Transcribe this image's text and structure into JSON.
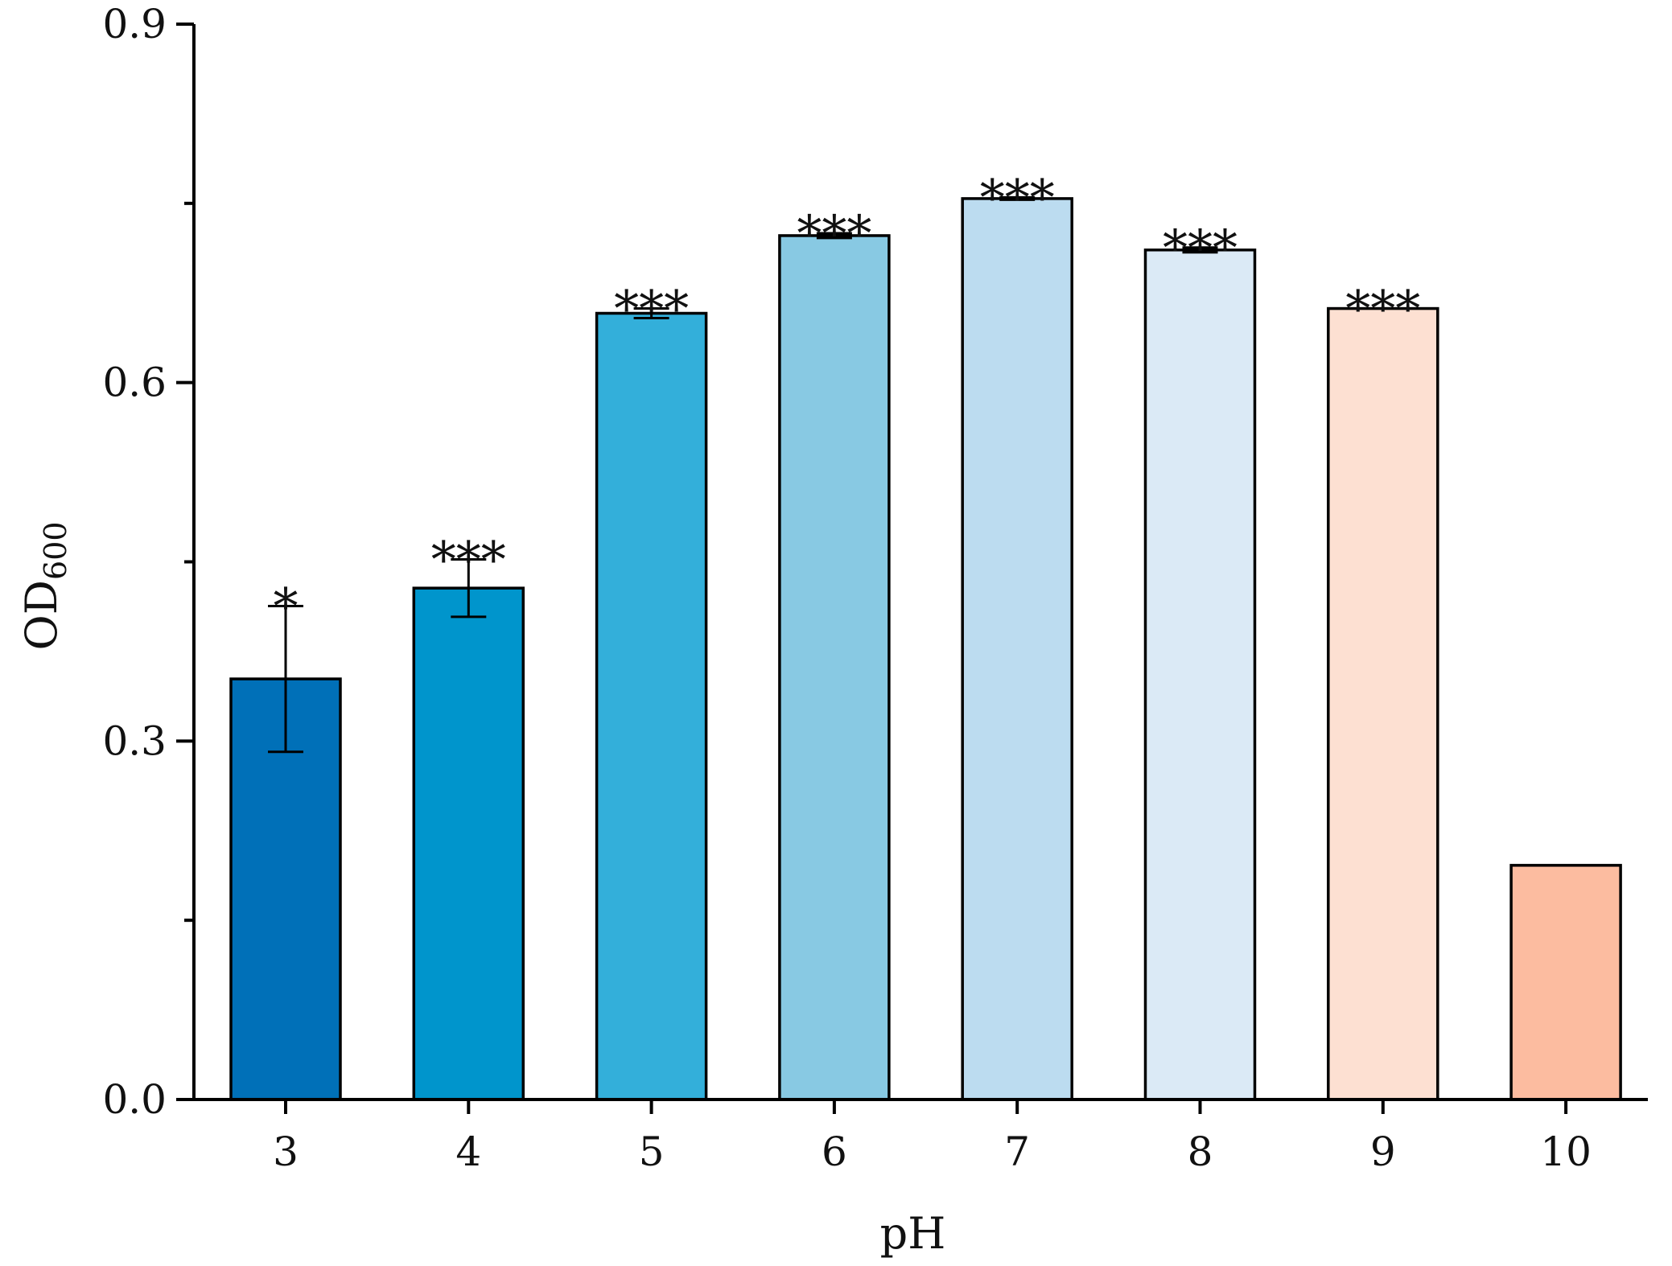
{
  "chart_data": {
    "type": "bar",
    "title": "",
    "xlabel": "pH",
    "ylabel": "OD",
    "ylabel_subscript": "600",
    "categories": [
      "3",
      "4",
      "5",
      "6",
      "7",
      "8",
      "9",
      "10"
    ],
    "values": [
      0.352,
      0.428,
      0.658,
      0.723,
      0.754,
      0.711,
      0.662,
      0.196
    ],
    "errors": [
      0.061,
      0.024,
      0.004,
      0.002,
      0.001,
      0.002,
      0.0,
      0.0
    ],
    "significance": [
      "*",
      "***",
      "***",
      "***",
      "***",
      "***",
      "***",
      ""
    ],
    "colors": [
      "#0070b8",
      "#0095cc",
      "#33afda",
      "#88c9e3",
      "#bcdcf0",
      "#dbeaf6",
      "#fde0d2",
      "#fcbca0"
    ],
    "ylim": [
      0,
      0.9
    ],
    "yticks": [
      "0.0",
      "0.3",
      "0.6",
      "0.9"
    ],
    "ytick_values": [
      0.0,
      0.3,
      0.6,
      0.9
    ],
    "yminor_ticks": [
      0.15,
      0.45,
      0.75
    ],
    "grid": false,
    "legend": false
  }
}
